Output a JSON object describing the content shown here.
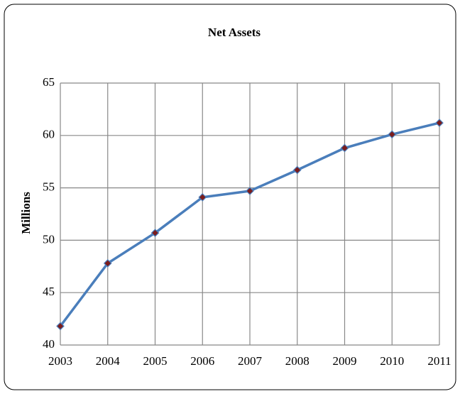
{
  "chart_data": {
    "type": "line",
    "title": "Net Assets",
    "y_label": "Millions",
    "categories": [
      "2003",
      "2004",
      "2005",
      "2006",
      "2007",
      "2008",
      "2009",
      "2010",
      "2011"
    ],
    "series": [
      {
        "name": "Net Assets",
        "color": "#4a7ebb",
        "marker_color": "#7b1c1c",
        "values": [
          41.8,
          47.8,
          50.7,
          54.1,
          54.7,
          56.7,
          58.8,
          60.1,
          61.2
        ]
      }
    ],
    "ylim": [
      40,
      65
    ],
    "yticks": [
      40,
      45,
      50,
      55,
      60,
      65
    ],
    "grid": true
  }
}
